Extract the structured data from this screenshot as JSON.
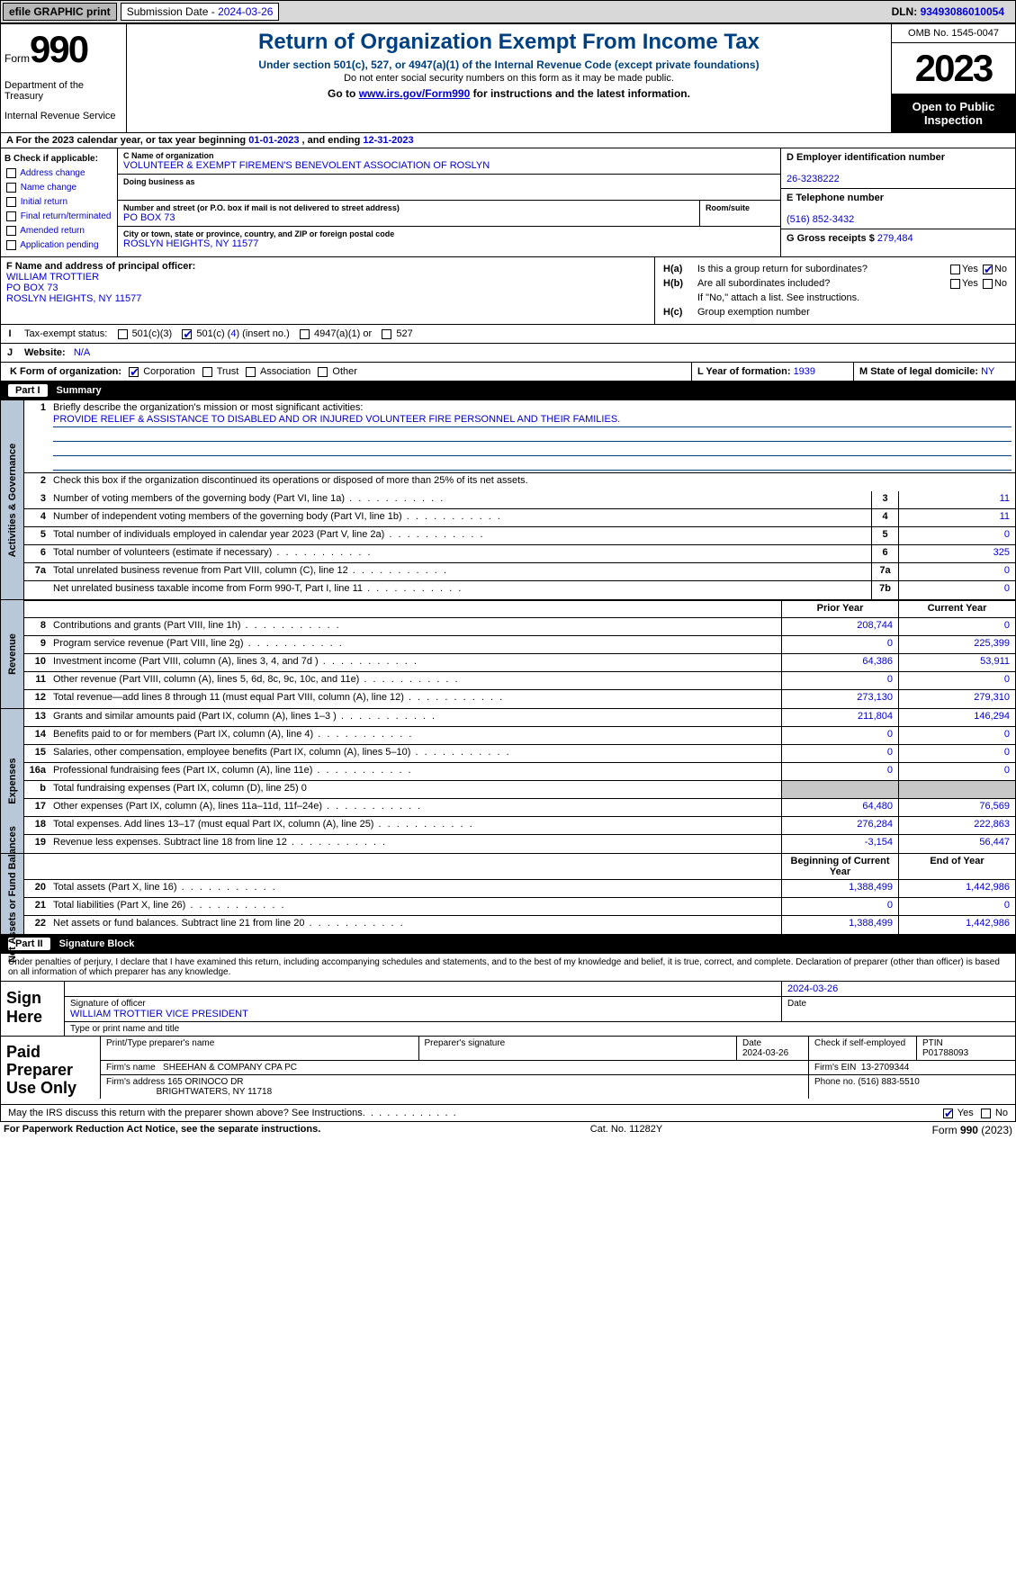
{
  "topbar": {
    "efile": "efile GRAPHIC print",
    "submission_label": "Submission Date - ",
    "submission_date": "2024-03-26",
    "dln_label": "DLN: ",
    "dln": "93493086010054"
  },
  "header": {
    "form_label": "Form",
    "form_num": "990",
    "dept1": "Department of the Treasury",
    "dept2": "Internal Revenue Service",
    "title": "Return of Organization Exempt From Income Tax",
    "sub": "Under section 501(c), 527, or 4947(a)(1) of the Internal Revenue Code (except private foundations)",
    "note": "Do not enter social security numbers on this form as it may be made public.",
    "goto_pre": "Go to ",
    "goto_url": "www.irs.gov/Form990",
    "goto_post": " for instructions and the latest information.",
    "omb": "OMB No. 1545-0047",
    "year": "2023",
    "open": "Open to Public Inspection"
  },
  "A": {
    "label": "A For the 2023 calendar year, or tax year beginning ",
    "begin": "01-01-2023",
    "mid": " , and ending ",
    "end": "12-31-2023"
  },
  "B": {
    "label": "B Check if applicable:",
    "opts": [
      "Address change",
      "Name change",
      "Initial return",
      "Final return/terminated",
      "Amended return",
      "Application pending"
    ]
  },
  "C": {
    "name_lbl": "C Name of organization",
    "name": "VOLUNTEER & EXEMPT FIREMEN'S BENEVOLENT ASSOCIATION OF ROSLYN",
    "dba_lbl": "Doing business as",
    "street_lbl": "Number and street (or P.O. box if mail is not delivered to street address)",
    "room_lbl": "Room/suite",
    "street": "PO BOX 73",
    "city_lbl": "City or town, state or province, country, and ZIP or foreign postal code",
    "city": "ROSLYN HEIGHTS, NY  11577"
  },
  "D": {
    "lbl": "D Employer identification number",
    "val": "26-3238222"
  },
  "E": {
    "lbl": "E Telephone number",
    "val": "(516) 852-3432"
  },
  "G": {
    "lbl": "G Gross receipts $ ",
    "val": "279,484"
  },
  "F": {
    "lbl": "F  Name and address of principal officer:",
    "name": "WILLIAM TROTTIER",
    "street": "PO BOX 73",
    "city": "ROSLYN HEIGHTS, NY  11577"
  },
  "H": {
    "a_lbl": "H(a)",
    "a_txt": "Is this a group return for subordinates?",
    "b_lbl": "H(b)",
    "b_txt": "Are all subordinates included?",
    "note": "If \"No,\" attach a list. See instructions.",
    "c_lbl": "H(c)",
    "c_txt": "Group exemption number"
  },
  "I": {
    "lbl": "Tax-exempt status:",
    "o1": "501(c)(3)",
    "o2_pre": "501(c) (",
    "o2_num": "4",
    "o2_post": ") (insert no.)",
    "o3": "4947(a)(1) or",
    "o4": "527"
  },
  "J": {
    "lbl": "Website:",
    "val": "N/A"
  },
  "K": {
    "lbl": "K Form of organization:",
    "opts": [
      "Corporation",
      "Trust",
      "Association",
      "Other"
    ]
  },
  "L": {
    "lbl": "L Year of formation: ",
    "val": "1939"
  },
  "M": {
    "lbl": "M State of legal domicile: ",
    "val": "NY"
  },
  "part1": {
    "num": "Part I",
    "title": "Summary"
  },
  "sum": {
    "q1_lbl": "Briefly describe the organization's mission or most significant activities:",
    "q1_val": "PROVIDE RELIEF & ASSISTANCE TO DISABLED AND OR INJURED VOLUNTEER FIRE PERSONNEL AND THEIR FAMILIES.",
    "q2": "Check this box           if the organization discontinued its operations or disposed of more than 25% of its net assets.",
    "rows_top": [
      {
        "n": "3",
        "t": "Number of voting members of the governing body (Part VI, line 1a)",
        "nc": "3",
        "v": "11"
      },
      {
        "n": "4",
        "t": "Number of independent voting members of the governing body (Part VI, line 1b)",
        "nc": "4",
        "v": "11"
      },
      {
        "n": "5",
        "t": "Total number of individuals employed in calendar year 2023 (Part V, line 2a)",
        "nc": "5",
        "v": "0"
      },
      {
        "n": "6",
        "t": "Total number of volunteers (estimate if necessary)",
        "nc": "6",
        "v": "325"
      },
      {
        "n": "7a",
        "t": "Total unrelated business revenue from Part VIII, column (C), line 12",
        "nc": "7a",
        "v": "0"
      },
      {
        "n": "",
        "t": "Net unrelated business taxable income from Form 990-T, Part I, line 11",
        "nc": "7b",
        "v": "0"
      }
    ],
    "hdr_prior": "Prior Year",
    "hdr_curr": "Current Year",
    "rows_rev": [
      {
        "n": "8",
        "t": "Contributions and grants (Part VIII, line 1h)",
        "p": "208,744",
        "c": "0"
      },
      {
        "n": "9",
        "t": "Program service revenue (Part VIII, line 2g)",
        "p": "0",
        "c": "225,399"
      },
      {
        "n": "10",
        "t": "Investment income (Part VIII, column (A), lines 3, 4, and 7d )",
        "p": "64,386",
        "c": "53,911"
      },
      {
        "n": "11",
        "t": "Other revenue (Part VIII, column (A), lines 5, 6d, 8c, 9c, 10c, and 11e)",
        "p": "0",
        "c": "0"
      },
      {
        "n": "12",
        "t": "Total revenue—add lines 8 through 11 (must equal Part VIII, column (A), line 12)",
        "p": "273,130",
        "c": "279,310"
      }
    ],
    "rows_exp": [
      {
        "n": "13",
        "t": "Grants and similar amounts paid (Part IX, column (A), lines 1–3 )",
        "p": "211,804",
        "c": "146,294"
      },
      {
        "n": "14",
        "t": "Benefits paid to or for members (Part IX, column (A), line 4)",
        "p": "0",
        "c": "0"
      },
      {
        "n": "15",
        "t": "Salaries, other compensation, employee benefits (Part IX, column (A), lines 5–10)",
        "p": "0",
        "c": "0"
      },
      {
        "n": "16a",
        "t": "Professional fundraising fees (Part IX, column (A), line 11e)",
        "p": "0",
        "c": "0"
      },
      {
        "n": "b",
        "t": "Total fundraising expenses (Part IX, column (D), line 25) 0",
        "p": "",
        "c": "",
        "shade": true
      },
      {
        "n": "17",
        "t": "Other expenses (Part IX, column (A), lines 11a–11d, 11f–24e)",
        "p": "64,480",
        "c": "76,569"
      },
      {
        "n": "18",
        "t": "Total expenses. Add lines 13–17 (must equal Part IX, column (A), line 25)",
        "p": "276,284",
        "c": "222,863"
      },
      {
        "n": "19",
        "t": "Revenue less expenses. Subtract line 18 from line 12",
        "p": "-3,154",
        "c": "56,447"
      }
    ],
    "hdr_beg": "Beginning of Current Year",
    "hdr_end": "End of Year",
    "rows_net": [
      {
        "n": "20",
        "t": "Total assets (Part X, line 16)",
        "p": "1,388,499",
        "c": "1,442,986"
      },
      {
        "n": "21",
        "t": "Total liabilities (Part X, line 26)",
        "p": "0",
        "c": "0"
      },
      {
        "n": "22",
        "t": "Net assets or fund balances. Subtract line 21 from line 20",
        "p": "1,388,499",
        "c": "1,442,986"
      }
    ]
  },
  "tabs": {
    "gov": "Activities & Governance",
    "rev": "Revenue",
    "exp": "Expenses",
    "net": "Net Assets or Fund Balances"
  },
  "part2": {
    "num": "Part II",
    "title": "Signature Block"
  },
  "penalty": "Under penalties of perjury, I declare that I have examined this return, including accompanying schedules and statements, and to the best of my knowledge and belief, it is true, correct, and complete. Declaration of preparer (other than officer) is based on all information of which preparer has any knowledge.",
  "sign": {
    "label": "Sign Here",
    "date": "2024-03-26",
    "sig_lbl": "Signature of officer",
    "officer": "WILLIAM TROTTIER  VICE PRESIDENT",
    "type_lbl": "Type or print name and title",
    "date_lbl": "Date"
  },
  "paid": {
    "label": "Paid Preparer Use Only",
    "pname_lbl": "Print/Type preparer's name",
    "psig_lbl": "Preparer's signature",
    "pdate_lbl": "Date",
    "pdate": "2024-03-26",
    "pcheck_lbl": "Check           if self-employed",
    "ptin_lbl": "PTIN",
    "ptin": "P01788093",
    "firm_name_lbl": "Firm's name",
    "firm_name": "SHEEHAN & COMPANY CPA PC",
    "firm_ein_lbl": "Firm's EIN",
    "firm_ein": "13-2709344",
    "firm_addr_lbl": "Firm's address",
    "firm_addr1": "165 ORINOCO DR",
    "firm_addr2": "BRIGHTWATERS, NY  11718",
    "phone_lbl": "Phone no.",
    "phone": "(516) 883-5510"
  },
  "mayirs": {
    "q": "May the IRS discuss this return with the preparer shown above? See Instructions.",
    "yes": "Yes",
    "no": "No"
  },
  "footer": {
    "left": "For Paperwork Reduction Act Notice, see the separate instructions.",
    "mid": "Cat. No. 11282Y",
    "right_pre": "Form ",
    "right_form": "990",
    "right_post": " (2023)"
  },
  "colors": {
    "link": "#0000cc",
    "header_text": "#004080",
    "shade": "#c8c8c8",
    "tab_bg": "#b8c8d8"
  }
}
